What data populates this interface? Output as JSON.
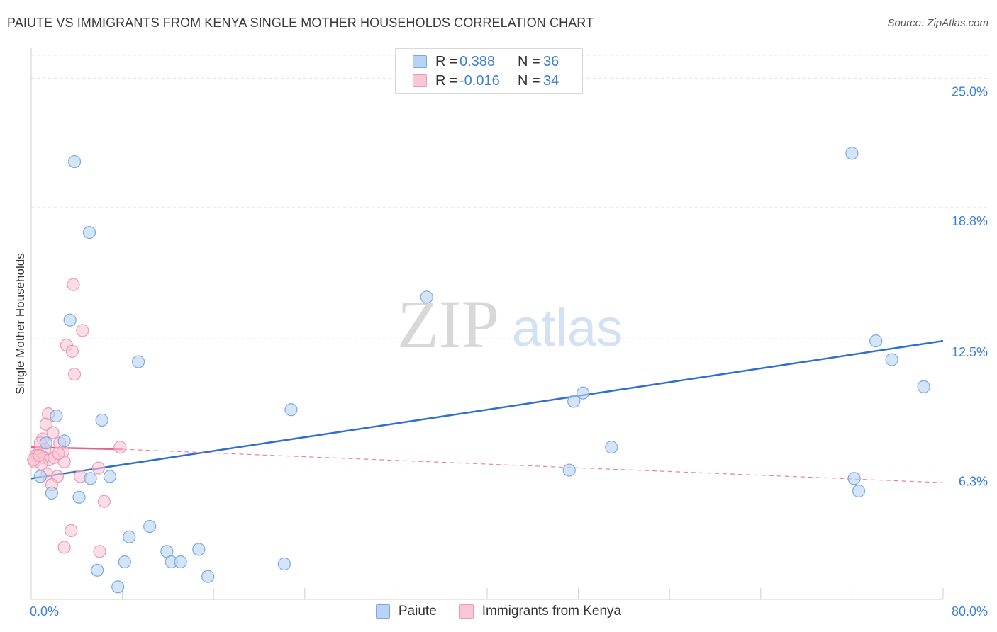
{
  "title": "PAIUTE VS IMMIGRANTS FROM KENYA SINGLE MOTHER HOUSEHOLDS CORRELATION CHART",
  "source": "Source: ZipAtlas.com",
  "watermark": {
    "zip": "ZIP",
    "atlas": "atlas"
  },
  "colors": {
    "paiute_fill": "#b8d3f5",
    "paiute_stroke": "#7aa9df",
    "paiute_line": "#2f6fd0",
    "kenya_fill": "#f8c6d6",
    "kenya_stroke": "#ee98b3",
    "kenya_line": "#e8608c",
    "grid": "#e3e3e3",
    "axis_label": "#3a7fd6"
  },
  "legend_top": [
    {
      "r_label": "R =",
      "r_value": "0.388",
      "n_label": "N =",
      "n_value": "36"
    },
    {
      "r_label": "R =",
      "r_value": "-0.016",
      "n_label": "N =",
      "n_value": "34"
    }
  ],
  "legend_bottom": [
    "Paiute",
    "Immigrants from Kenya"
  ],
  "chart_data": {
    "type": "scatter",
    "title": "PAIUTE VS IMMIGRANTS FROM KENYA SINGLE MOTHER HOUSEHOLDS CORRELATION CHART",
    "xlabel": "",
    "ylabel": "Single Mother Households",
    "xlim": [
      0,
      80
    ],
    "ylim": [
      0,
      26.1
    ],
    "x_tick_labels": [
      "0.0%",
      "80.0%"
    ],
    "y_ticks": [
      6.3,
      12.5,
      18.8,
      25.0
    ],
    "y_tick_labels": [
      "6.3%",
      "12.5%",
      "18.8%",
      "25.0%"
    ],
    "grid": true,
    "series": [
      {
        "name": "Paiute",
        "points": [
          [
            3.8,
            21.0
          ],
          [
            5.1,
            17.6
          ],
          [
            3.4,
            13.4
          ],
          [
            9.4,
            11.4
          ],
          [
            2.2,
            8.8
          ],
          [
            6.2,
            8.6
          ],
          [
            1.3,
            7.5
          ],
          [
            2.9,
            7.6
          ],
          [
            0.8,
            5.9
          ],
          [
            5.2,
            5.8
          ],
          [
            6.9,
            5.9
          ],
          [
            1.8,
            5.1
          ],
          [
            4.2,
            4.9
          ],
          [
            10.4,
            3.5
          ],
          [
            8.6,
            3.0
          ],
          [
            11.9,
            2.3
          ],
          [
            14.7,
            2.4
          ],
          [
            12.3,
            1.8
          ],
          [
            13.1,
            1.8
          ],
          [
            8.2,
            1.8
          ],
          [
            5.8,
            1.4
          ],
          [
            15.5,
            1.1
          ],
          [
            7.6,
            0.6
          ],
          [
            22.2,
            1.7
          ],
          [
            22.8,
            9.1
          ],
          [
            34.7,
            14.5
          ],
          [
            47.6,
            9.5
          ],
          [
            48.4,
            9.9
          ],
          [
            50.9,
            7.3
          ],
          [
            47.2,
            6.2
          ],
          [
            72.0,
            21.4
          ],
          [
            74.1,
            12.4
          ],
          [
            75.5,
            11.5
          ],
          [
            72.2,
            5.8
          ],
          [
            72.6,
            5.2
          ],
          [
            78.3,
            10.2
          ]
        ],
        "trend": {
          "x": [
            0,
            80
          ],
          "y": [
            5.8,
            12.4
          ]
        }
      },
      {
        "name": "Immigrants from Kenya",
        "points": [
          [
            3.7,
            15.1
          ],
          [
            4.5,
            12.9
          ],
          [
            3.1,
            12.2
          ],
          [
            3.6,
            11.9
          ],
          [
            3.8,
            10.8
          ],
          [
            1.5,
            8.9
          ],
          [
            1.3,
            8.4
          ],
          [
            1.9,
            8.0
          ],
          [
            1.0,
            7.7
          ],
          [
            0.8,
            7.5
          ],
          [
            1.2,
            7.2
          ],
          [
            2.5,
            7.5
          ],
          [
            2.8,
            7.1
          ],
          [
            0.6,
            7.0
          ],
          [
            0.4,
            6.9
          ],
          [
            1.1,
            6.8
          ],
          [
            1.6,
            6.7
          ],
          [
            2.0,
            6.8
          ],
          [
            0.3,
            6.6
          ],
          [
            0.9,
            6.5
          ],
          [
            0.2,
            6.7
          ],
          [
            2.9,
            6.6
          ],
          [
            1.4,
            6.0
          ],
          [
            2.3,
            5.9
          ],
          [
            4.3,
            5.9
          ],
          [
            5.9,
            6.3
          ],
          [
            7.8,
            7.3
          ],
          [
            1.8,
            5.5
          ],
          [
            6.4,
            4.7
          ],
          [
            3.5,
            3.3
          ],
          [
            2.9,
            2.5
          ],
          [
            6.0,
            2.3
          ],
          [
            0.7,
            6.9
          ],
          [
            2.4,
            7.0
          ]
        ],
        "trend": {
          "x": [
            0,
            8
          ],
          "y": [
            7.3,
            7.2
          ]
        },
        "trend_extension": {
          "x": [
            8,
            80
          ],
          "y": [
            7.2,
            5.6
          ]
        }
      }
    ]
  }
}
